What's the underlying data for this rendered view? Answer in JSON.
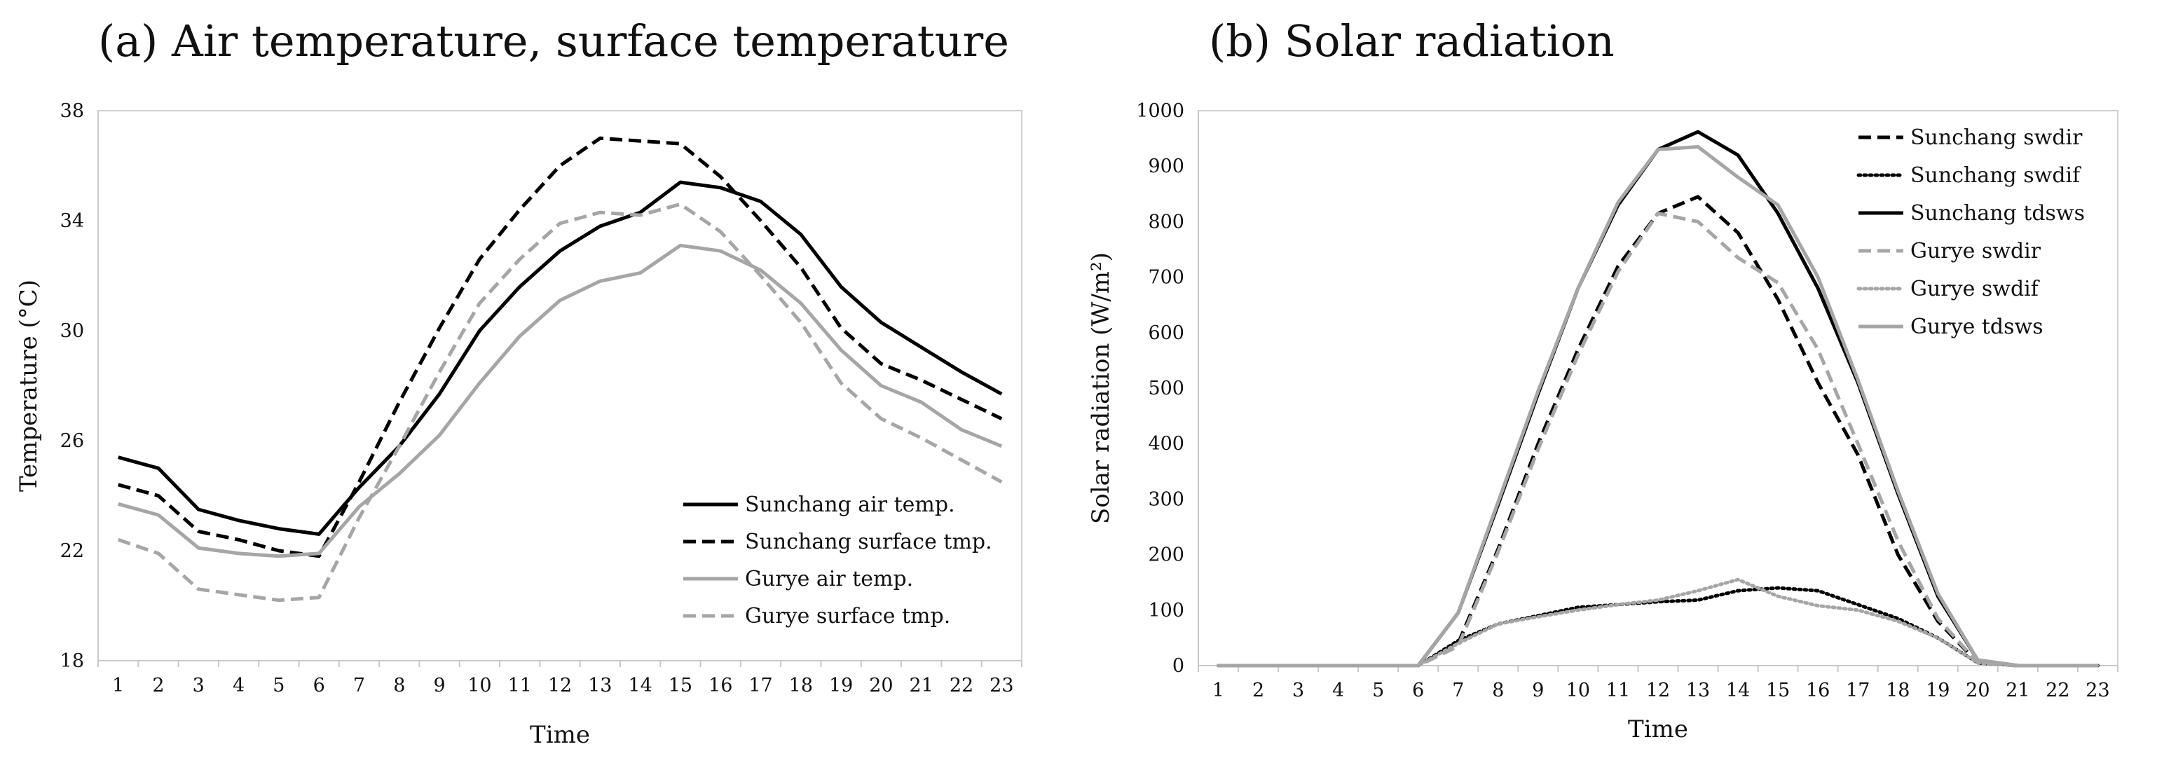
{
  "chart_data": [
    {
      "type": "line",
      "title": "(a) Air temperature, surface temperature",
      "xlabel": "Time",
      "ylabel": "Temperature (°C)",
      "ylim": [
        18,
        38
      ],
      "yticks": [
        18,
        22,
        26,
        30,
        34,
        38
      ],
      "grid": false,
      "legend": "bottom-right",
      "x": [
        1,
        2,
        3,
        4,
        5,
        6,
        7,
        8,
        9,
        10,
        11,
        12,
        13,
        14,
        15,
        16,
        17,
        18,
        19,
        20,
        21,
        22,
        23
      ],
      "series": [
        {
          "name": "Sunchang air temp.",
          "color": "#000000",
          "dash": "solid",
          "values": [
            25.4,
            25.0,
            23.5,
            23.1,
            22.8,
            22.6,
            24.3,
            25.8,
            27.7,
            30.0,
            31.6,
            32.9,
            33.8,
            34.3,
            35.4,
            35.2,
            34.7,
            33.5,
            31.6,
            30.3,
            29.4,
            28.5,
            27.7
          ]
        },
        {
          "name": "Sunchang surface tmp.",
          "color": "#000000",
          "dash": "dashed",
          "values": [
            24.4,
            24.0,
            22.7,
            22.4,
            22.0,
            21.8,
            24.5,
            27.4,
            30.1,
            32.6,
            34.4,
            36.0,
            37.0,
            36.9,
            36.8,
            35.6,
            34.0,
            32.3,
            30.1,
            28.8,
            28.2,
            27.5,
            26.8
          ]
        },
        {
          "name": "Gurye air temp.",
          "color": "#a6a6a6",
          "dash": "solid",
          "values": [
            23.7,
            23.3,
            22.1,
            21.9,
            21.8,
            21.9,
            23.6,
            24.8,
            26.2,
            28.1,
            29.8,
            31.1,
            31.8,
            32.1,
            33.1,
            32.9,
            32.2,
            31.0,
            29.3,
            28.0,
            27.4,
            26.4,
            25.8
          ]
        },
        {
          "name": "Gurye surface tmp.",
          "color": "#a6a6a6",
          "dash": "dashed",
          "values": [
            22.4,
            21.9,
            20.6,
            20.4,
            20.2,
            20.3,
            23.2,
            25.8,
            28.5,
            31.0,
            32.6,
            33.9,
            34.3,
            34.2,
            34.6,
            33.6,
            32.0,
            30.3,
            28.1,
            26.8,
            26.1,
            25.3,
            24.5
          ]
        }
      ]
    },
    {
      "type": "line",
      "title": "(b) Solar radiation",
      "xlabel": "Time",
      "ylabel": "Solar radiation (W/m²)",
      "ylim": [
        0,
        1000
      ],
      "yticks": [
        0,
        100,
        200,
        300,
        400,
        500,
        600,
        700,
        800,
        900,
        1000
      ],
      "grid": false,
      "legend": "top-right",
      "x": [
        1,
        2,
        3,
        4,
        5,
        6,
        7,
        8,
        9,
        10,
        11,
        12,
        13,
        14,
        15,
        16,
        17,
        18,
        19,
        20,
        21,
        22,
        23
      ],
      "series": [
        {
          "name": "Sunchang swdir",
          "color": "#000000",
          "dash": "dashed",
          "values": [
            0,
            0,
            0,
            0,
            0,
            0,
            40,
            210,
            400,
            570,
            720,
            815,
            845,
            780,
            660,
            510,
            380,
            200,
            80,
            5,
            0,
            0,
            0
          ]
        },
        {
          "name": "Sunchang swdif",
          "color": "#000000",
          "dash": "dotted",
          "values": [
            0,
            0,
            0,
            0,
            0,
            0,
            45,
            75,
            90,
            105,
            110,
            115,
            118,
            135,
            140,
            135,
            110,
            85,
            50,
            5,
            0,
            0,
            0
          ]
        },
        {
          "name": "Sunchang tdsws",
          "color": "#000000",
          "dash": "solid",
          "values": [
            0,
            0,
            0,
            0,
            0,
            0,
            95,
            290,
            490,
            680,
            830,
            930,
            962,
            920,
            815,
            680,
            510,
            310,
            125,
            10,
            0,
            0,
            0
          ]
        },
        {
          "name": "Gurye swdir",
          "color": "#a6a6a6",
          "dash": "dashed",
          "values": [
            0,
            0,
            0,
            0,
            0,
            0,
            35,
            205,
            390,
            560,
            710,
            815,
            800,
            735,
            690,
            570,
            400,
            225,
            85,
            5,
            0,
            0,
            0
          ]
        },
        {
          "name": "Gurye swdif",
          "color": "#a6a6a6",
          "dash": "dotted",
          "values": [
            0,
            0,
            0,
            0,
            0,
            0,
            40,
            75,
            88,
            100,
            110,
            118,
            135,
            155,
            125,
            108,
            100,
            80,
            50,
            5,
            0,
            0,
            0
          ]
        },
        {
          "name": "Gurye tdsws",
          "color": "#a6a6a6",
          "dash": "solid",
          "values": [
            0,
            0,
            0,
            0,
            0,
            0,
            95,
            295,
            495,
            680,
            835,
            930,
            935,
            880,
            830,
            700,
            515,
            315,
            130,
            10,
            0,
            0,
            0
          ]
        }
      ]
    }
  ]
}
